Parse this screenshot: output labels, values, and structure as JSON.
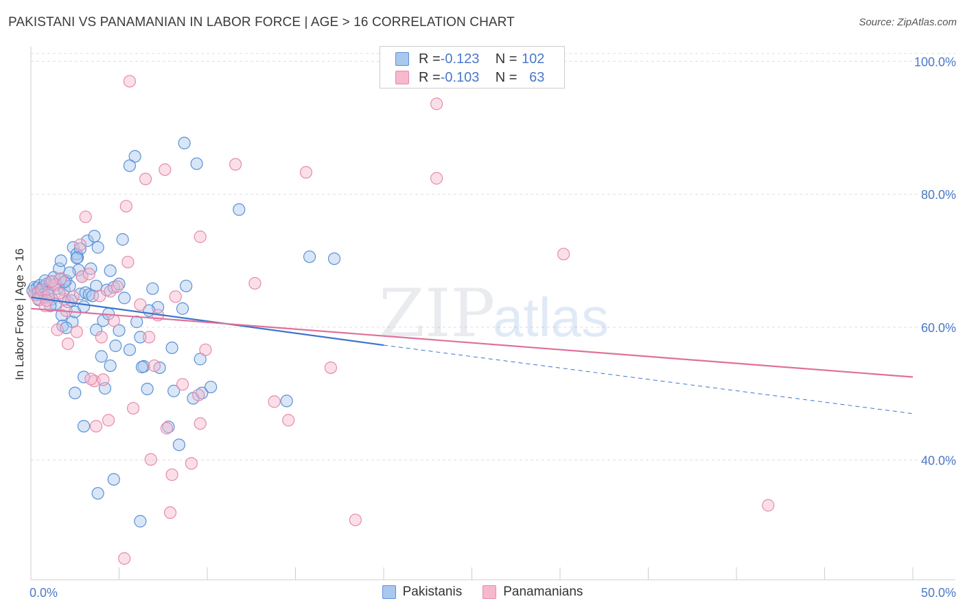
{
  "title": "PAKISTANI VS PANAMANIAN IN LABOR FORCE | AGE > 16 CORRELATION CHART",
  "source": "Source: ZipAtlas.com",
  "watermark": {
    "zip": "ZIP",
    "atlas": "atlas"
  },
  "colors": {
    "pakistani_fill": "#a9c8ee",
    "pakistani_stroke": "#5b8fd6",
    "pakistani_line": "#3a75cc",
    "panamanian_fill": "#f6b8cd",
    "panamanian_stroke": "#e58aab",
    "panamanian_line": "#e0709a",
    "grid": "#dddddd",
    "tick_text": "#4a78c8"
  },
  "legend": {
    "rows": [
      {
        "r_label": "R = ",
        "r_value": "-0.123",
        "n_label": "N = ",
        "n_value": "102"
      },
      {
        "r_label": "R = ",
        "r_value": "-0.103",
        "n_label": "N = ",
        "n_value": "63"
      }
    ]
  },
  "bottom_legend": [
    "Pakistanis",
    "Panamanians"
  ],
  "chart_data": {
    "type": "scatter",
    "title": "PAKISTANI VS PANAMANIAN IN LABOR FORCE | AGE > 16 CORRELATION CHART",
    "xlabel": "",
    "ylabel": "In Labor Force | Age > 16",
    "xlim": [
      0,
      50
    ],
    "ylim": [
      22,
      102
    ],
    "x_tick_labels": [
      {
        "value": 0,
        "label": "0.0%"
      },
      {
        "value": 50,
        "label": "50.0%"
      }
    ],
    "y_tick_labels": [
      {
        "value": 100,
        "label": "100.0%"
      },
      {
        "value": 80,
        "label": "80.0%"
      },
      {
        "value": 60,
        "label": "60.0%"
      },
      {
        "value": 40,
        "label": "40.0%"
      }
    ],
    "grid": true,
    "legend_placement": "top-center",
    "series": [
      {
        "name": "Pakistanis",
        "r": -0.123,
        "n": 102,
        "trend": {
          "x0": 0,
          "y0": 64.5,
          "x1": 20,
          "y1": 57.3,
          "dashed_to_x": 50,
          "dashed_to_y": 47.0
        },
        "points": [
          [
            0.1,
            65.5
          ],
          [
            0.2,
            66.0
          ],
          [
            0.3,
            64.8
          ],
          [
            0.35,
            65.9
          ],
          [
            0.4,
            65.2
          ],
          [
            0.5,
            66.3
          ],
          [
            0.55,
            64.9
          ],
          [
            0.6,
            65.7
          ],
          [
            0.7,
            66.1
          ],
          [
            0.75,
            65.0
          ],
          [
            0.8,
            64.5
          ],
          [
            0.9,
            66.5
          ],
          [
            1.0,
            65.3
          ],
          [
            1.1,
            66.8
          ],
          [
            1.2,
            64.2
          ],
          [
            1.3,
            67.5
          ],
          [
            1.4,
            63.5
          ],
          [
            1.5,
            65.8
          ],
          [
            1.6,
            68.8
          ],
          [
            1.65,
            67.2
          ],
          [
            1.7,
            70.0
          ],
          [
            1.75,
            61.8
          ],
          [
            1.8,
            60.2
          ],
          [
            1.9,
            65.6
          ],
          [
            2.0,
            67.0
          ],
          [
            2.1,
            63.8
          ],
          [
            2.2,
            66.2
          ],
          [
            2.3,
            64.0
          ],
          [
            2.35,
            60.8
          ],
          [
            2.4,
            72.0
          ],
          [
            2.5,
            62.3
          ],
          [
            2.6,
            71.0
          ],
          [
            2.65,
            70.5
          ],
          [
            2.7,
            68.6
          ],
          [
            2.8,
            65.0
          ],
          [
            2.9,
            67.6
          ],
          [
            3.0,
            63.1
          ],
          [
            3.1,
            65.2
          ],
          [
            3.2,
            73.0
          ],
          [
            3.3,
            64.9
          ],
          [
            3.4,
            68.8
          ],
          [
            3.6,
            73.7
          ],
          [
            3.7,
            66.2
          ],
          [
            3.8,
            72.0
          ],
          [
            4.1,
            61.0
          ],
          [
            4.3,
            65.6
          ],
          [
            4.5,
            68.5
          ],
          [
            4.7,
            66.0
          ],
          [
            5.2,
            73.2
          ],
          [
            5.6,
            56.6
          ],
          [
            5.0,
            59.5
          ],
          [
            4.8,
            57.2
          ],
          [
            4.5,
            54.2
          ],
          [
            4.0,
            55.6
          ],
          [
            3.7,
            59.6
          ],
          [
            3.0,
            52.5
          ],
          [
            2.5,
            50.1
          ],
          [
            4.2,
            50.8
          ],
          [
            6.0,
            60.8
          ],
          [
            6.2,
            58.5
          ],
          [
            6.4,
            54.1
          ],
          [
            6.6,
            50.7
          ],
          [
            6.9,
            65.8
          ],
          [
            7.2,
            63.0
          ],
          [
            7.3,
            53.9
          ],
          [
            8.0,
            56.9
          ],
          [
            8.1,
            50.4
          ],
          [
            8.6,
            62.8
          ],
          [
            8.8,
            66.2
          ],
          [
            9.2,
            49.3
          ],
          [
            9.6,
            55.2
          ],
          [
            9.7,
            50.1
          ],
          [
            10.2,
            51.0
          ],
          [
            14.5,
            48.9
          ],
          [
            15.8,
            70.6
          ],
          [
            17.2,
            70.3
          ],
          [
            11.8,
            77.7
          ],
          [
            8.7,
            87.7
          ],
          [
            5.9,
            85.7
          ],
          [
            9.4,
            84.6
          ],
          [
            5.6,
            84.3
          ],
          [
            6.3,
            54.0
          ],
          [
            7.8,
            45.0
          ],
          [
            3.0,
            45.1
          ],
          [
            8.4,
            42.3
          ],
          [
            4.7,
            37.1
          ],
          [
            3.8,
            35.0
          ],
          [
            6.2,
            30.8
          ],
          [
            5.3,
            64.4
          ],
          [
            2.0,
            59.9
          ],
          [
            6.7,
            62.5
          ],
          [
            1.4,
            66.4
          ],
          [
            0.8,
            67.0
          ],
          [
            1.1,
            63.2
          ],
          [
            3.5,
            64.7
          ],
          [
            2.2,
            68.2
          ],
          [
            4.4,
            62.0
          ],
          [
            5.0,
            66.5
          ],
          [
            2.8,
            71.8
          ],
          [
            1.9,
            66.8
          ],
          [
            0.45,
            64.1
          ],
          [
            2.6,
            70.4
          ]
        ]
      },
      {
        "name": "Panamanians",
        "r": -0.103,
        "n": 63,
        "trend": {
          "x0": 0,
          "y0": 62.8,
          "x1": 50,
          "y1": 52.5
        },
        "points": [
          [
            0.2,
            65.0
          ],
          [
            0.4,
            64.3
          ],
          [
            0.6,
            65.6
          ],
          [
            0.8,
            63.2
          ],
          [
            1.0,
            64.8
          ],
          [
            1.3,
            66.3
          ],
          [
            1.5,
            59.6
          ],
          [
            1.7,
            67.3
          ],
          [
            1.9,
            64.2
          ],
          [
            2.1,
            57.5
          ],
          [
            2.4,
            64.6
          ],
          [
            2.6,
            59.3
          ],
          [
            2.9,
            67.6
          ],
          [
            2.8,
            72.4
          ],
          [
            3.1,
            76.6
          ],
          [
            3.3,
            68.0
          ],
          [
            3.6,
            51.9
          ],
          [
            3.7,
            45.1
          ],
          [
            4.0,
            58.5
          ],
          [
            4.4,
            46.0
          ],
          [
            4.5,
            65.4
          ],
          [
            4.7,
            61.0
          ],
          [
            5.4,
            78.2
          ],
          [
            5.5,
            69.8
          ],
          [
            5.8,
            47.8
          ],
          [
            6.2,
            63.4
          ],
          [
            6.5,
            82.3
          ],
          [
            6.7,
            58.5
          ],
          [
            7.0,
            54.2
          ],
          [
            7.2,
            61.8
          ],
          [
            7.6,
            83.7
          ],
          [
            7.7,
            44.8
          ],
          [
            7.9,
            32.1
          ],
          [
            8.0,
            37.8
          ],
          [
            8.2,
            64.6
          ],
          [
            8.6,
            51.4
          ],
          [
            9.1,
            39.5
          ],
          [
            9.5,
            49.8
          ],
          [
            9.6,
            45.5
          ],
          [
            9.9,
            56.6
          ],
          [
            9.6,
            73.6
          ],
          [
            11.6,
            84.5
          ],
          [
            12.7,
            66.6
          ],
          [
            13.8,
            48.8
          ],
          [
            14.6,
            46.0
          ],
          [
            15.6,
            83.3
          ],
          [
            17.0,
            53.9
          ],
          [
            18.4,
            31.0
          ],
          [
            23.0,
            93.6
          ],
          [
            23.0,
            82.4
          ],
          [
            30.2,
            71.0
          ],
          [
            41.8,
            33.2
          ],
          [
            5.6,
            97.0
          ],
          [
            5.3,
            25.2
          ],
          [
            3.4,
            52.2
          ],
          [
            1.2,
            66.9
          ],
          [
            2.0,
            62.5
          ],
          [
            1.6,
            65.1
          ],
          [
            4.1,
            52.1
          ],
          [
            6.8,
            40.1
          ],
          [
            0.9,
            64.0
          ],
          [
            3.9,
            64.7
          ],
          [
            4.9,
            66.1
          ]
        ]
      }
    ]
  }
}
